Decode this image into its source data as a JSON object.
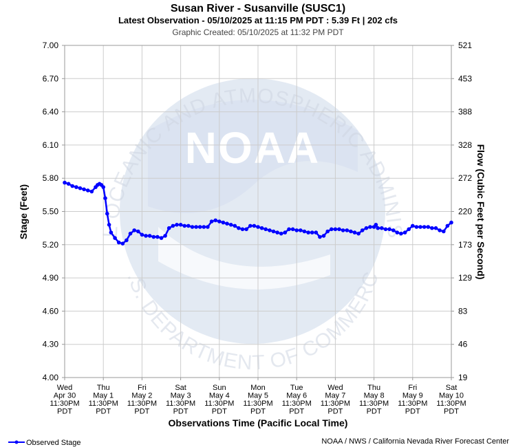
{
  "chart_data": {
    "type": "line",
    "title": "Susan River - Susanville (SUSC1)",
    "subtitle": "Latest Observation - 05/10/2025 at 11:15 PM PDT : 5.39 Ft | 202 cfs",
    "created": "Graphic Created: 05/10/2025 at 11:32 PM PDT",
    "xlabel": "Observations Time (Pacific Local Time)",
    "ylabel": "Stage (Feet)",
    "y2label": "Flow (Cubic Feet per Second)",
    "ylim": [
      4.0,
      7.0
    ],
    "yticks": [
      "7.00",
      "6.70",
      "6.40",
      "6.10",
      "5.80",
      "5.50",
      "5.20",
      "4.90",
      "4.60",
      "4.30",
      "4.00"
    ],
    "y2ticks": [
      "521",
      "453",
      "388",
      "328",
      "272",
      "220",
      "173",
      "129",
      "83",
      "46",
      "19"
    ],
    "xlim": [
      0,
      10
    ],
    "xticks": [
      [
        "Wed",
        "Apr 30",
        "11:30PM",
        "PDT"
      ],
      [
        "Thu",
        "May 1",
        "11:30PM",
        "PDT"
      ],
      [
        "Fri",
        "May 2",
        "11:30PM",
        "PDT"
      ],
      [
        "Sat",
        "May 3",
        "11:30PM",
        "PDT"
      ],
      [
        "Sun",
        "May 4",
        "11:30PM",
        "PDT"
      ],
      [
        "Mon",
        "May 5",
        "11:30PM",
        "PDT"
      ],
      [
        "Tue",
        "May 6",
        "11:30PM",
        "PDT"
      ],
      [
        "Wed",
        "May 7",
        "11:30PM",
        "PDT"
      ],
      [
        "Thu",
        "May 8",
        "11:30PM",
        "PDT"
      ],
      [
        "Fri",
        "May 9",
        "11:30PM",
        "PDT"
      ],
      [
        "Sat",
        "May 10",
        "11:30PM",
        "PDT"
      ]
    ],
    "grid": true,
    "legend": "bottom-left",
    "series": [
      {
        "name": "Observed Stage",
        "color": "#0000ff",
        "x": [
          0.0,
          0.1,
          0.2,
          0.3,
          0.4,
          0.5,
          0.6,
          0.7,
          0.8,
          0.85,
          0.9,
          0.95,
          1.0,
          1.05,
          1.1,
          1.15,
          1.2,
          1.3,
          1.4,
          1.5,
          1.6,
          1.7,
          1.8,
          1.9,
          2.0,
          2.1,
          2.2,
          2.3,
          2.4,
          2.5,
          2.6,
          2.7,
          2.8,
          2.9,
          3.0,
          3.1,
          3.2,
          3.3,
          3.4,
          3.5,
          3.6,
          3.7,
          3.8,
          3.9,
          4.0,
          4.1,
          4.2,
          4.3,
          4.4,
          4.5,
          4.6,
          4.7,
          4.8,
          4.9,
          5.0,
          5.1,
          5.2,
          5.3,
          5.4,
          5.5,
          5.6,
          5.7,
          5.8,
          5.9,
          6.0,
          6.1,
          6.2,
          6.3,
          6.4,
          6.5,
          6.6,
          6.7,
          6.8,
          6.9,
          7.0,
          7.1,
          7.2,
          7.3,
          7.4,
          7.5,
          7.6,
          7.7,
          7.8,
          7.9,
          8.0,
          8.05,
          8.1,
          8.2,
          8.3,
          8.4,
          8.5,
          8.6,
          8.7,
          8.8,
          8.9,
          9.0,
          9.1,
          9.2,
          9.3,
          9.4,
          9.5,
          9.6,
          9.7,
          9.8,
          9.9,
          10.0
        ],
        "values": [
          5.76,
          5.75,
          5.73,
          5.72,
          5.71,
          5.7,
          5.69,
          5.68,
          5.72,
          5.74,
          5.75,
          5.74,
          5.72,
          5.62,
          5.48,
          5.38,
          5.31,
          5.26,
          5.22,
          5.21,
          5.24,
          5.3,
          5.33,
          5.32,
          5.29,
          5.28,
          5.28,
          5.27,
          5.27,
          5.26,
          5.28,
          5.35,
          5.37,
          5.38,
          5.38,
          5.37,
          5.37,
          5.36,
          5.36,
          5.36,
          5.36,
          5.36,
          5.41,
          5.42,
          5.41,
          5.4,
          5.39,
          5.38,
          5.37,
          5.35,
          5.34,
          5.34,
          5.37,
          5.37,
          5.36,
          5.35,
          5.34,
          5.33,
          5.32,
          5.31,
          5.3,
          5.31,
          5.34,
          5.34,
          5.33,
          5.33,
          5.32,
          5.31,
          5.31,
          5.31,
          5.27,
          5.28,
          5.32,
          5.34,
          5.34,
          5.34,
          5.33,
          5.33,
          5.32,
          5.31,
          5.3,
          5.33,
          5.35,
          5.36,
          5.36,
          5.38,
          5.35,
          5.35,
          5.34,
          5.34,
          5.33,
          5.31,
          5.3,
          5.31,
          5.34,
          5.37,
          5.36,
          5.36,
          5.36,
          5.36,
          5.35,
          5.35,
          5.33,
          5.32,
          5.37,
          5.4
        ]
      }
    ]
  },
  "footer": {
    "legend_label": "Observed Stage",
    "credit": "NOAA / NWS / California Nevada River Forecast Center"
  },
  "watermark": {
    "logo_text": "NOAA",
    "seal_text": "NATIONAL OCEANIC AND ATMOSPHERIC ADMINISTRATION",
    "seal_text_bottom": "U.S. DEPARTMENT OF COMMERCE"
  },
  "colors": {
    "series": "#0000ff",
    "grid": "#cccccc",
    "watermark": "#e3eaf3"
  }
}
